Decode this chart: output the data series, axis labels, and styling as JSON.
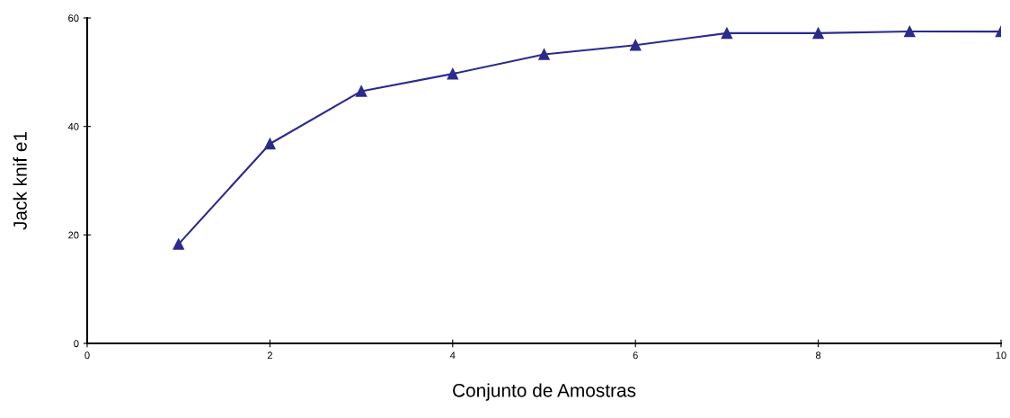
{
  "chart_data": {
    "type": "line",
    "xlabel": "Conjunto de Amostras",
    "ylabel": "Jack knif e1",
    "x": [
      1,
      2,
      3,
      4,
      5,
      6,
      7,
      8,
      9,
      10
    ],
    "series": [
      {
        "color": "#2b2b8c",
        "values": [
          18.3,
          36.8,
          46.5,
          49.7,
          53.3,
          55,
          57.2,
          57.2,
          57.5,
          57.5
        ]
      }
    ],
    "xlim": [
      0,
      10
    ],
    "xticks": [
      0,
      2,
      4,
      6,
      8,
      10
    ],
    "ylim": [
      0,
      60
    ],
    "yticks": [
      0,
      20,
      40,
      60
    ],
    "marker": "triangle",
    "line_style": "solid",
    "grid": false,
    "legend": false
  }
}
